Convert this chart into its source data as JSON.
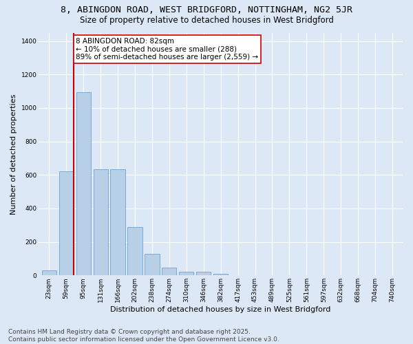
{
  "title_line1": "8, ABINGDON ROAD, WEST BRIDGFORD, NOTTINGHAM, NG2 5JR",
  "title_line2": "Size of property relative to detached houses in West Bridgford",
  "xlabel": "Distribution of detached houses by size in West Bridgford",
  "ylabel": "Number of detached properties",
  "categories": [
    "23sqm",
    "59sqm",
    "95sqm",
    "131sqm",
    "166sqm",
    "202sqm",
    "238sqm",
    "274sqm",
    "310sqm",
    "346sqm",
    "382sqm",
    "417sqm",
    "453sqm",
    "489sqm",
    "525sqm",
    "561sqm",
    "597sqm",
    "632sqm",
    "668sqm",
    "704sqm",
    "740sqm"
  ],
  "values": [
    30,
    620,
    1095,
    635,
    635,
    290,
    130,
    47,
    23,
    20,
    10,
    0,
    0,
    0,
    0,
    0,
    0,
    0,
    0,
    0,
    0
  ],
  "bar_color": "#b8cfe8",
  "bar_edge_color": "#7aabd4",
  "vline_x_index": 1.45,
  "vline_color": "#cc0000",
  "annotation_text": "8 ABINGDON ROAD: 82sqm\n← 10% of detached houses are smaller (288)\n89% of semi-detached houses are larger (2,559) →",
  "annotation_box_color": "#ffffff",
  "annotation_box_edge_color": "#cc0000",
  "ylim": [
    0,
    1450
  ],
  "yticks": [
    0,
    200,
    400,
    600,
    800,
    1000,
    1200,
    1400
  ],
  "background_color": "#dce8f5",
  "grid_color": "#ffffff",
  "footer_line1": "Contains HM Land Registry data © Crown copyright and database right 2025.",
  "footer_line2": "Contains public sector information licensed under the Open Government Licence v3.0.",
  "title_fontsize": 9.5,
  "subtitle_fontsize": 8.5,
  "axis_label_fontsize": 8,
  "tick_fontsize": 6.5,
  "annotation_fontsize": 7.5,
  "footer_fontsize": 6.5
}
